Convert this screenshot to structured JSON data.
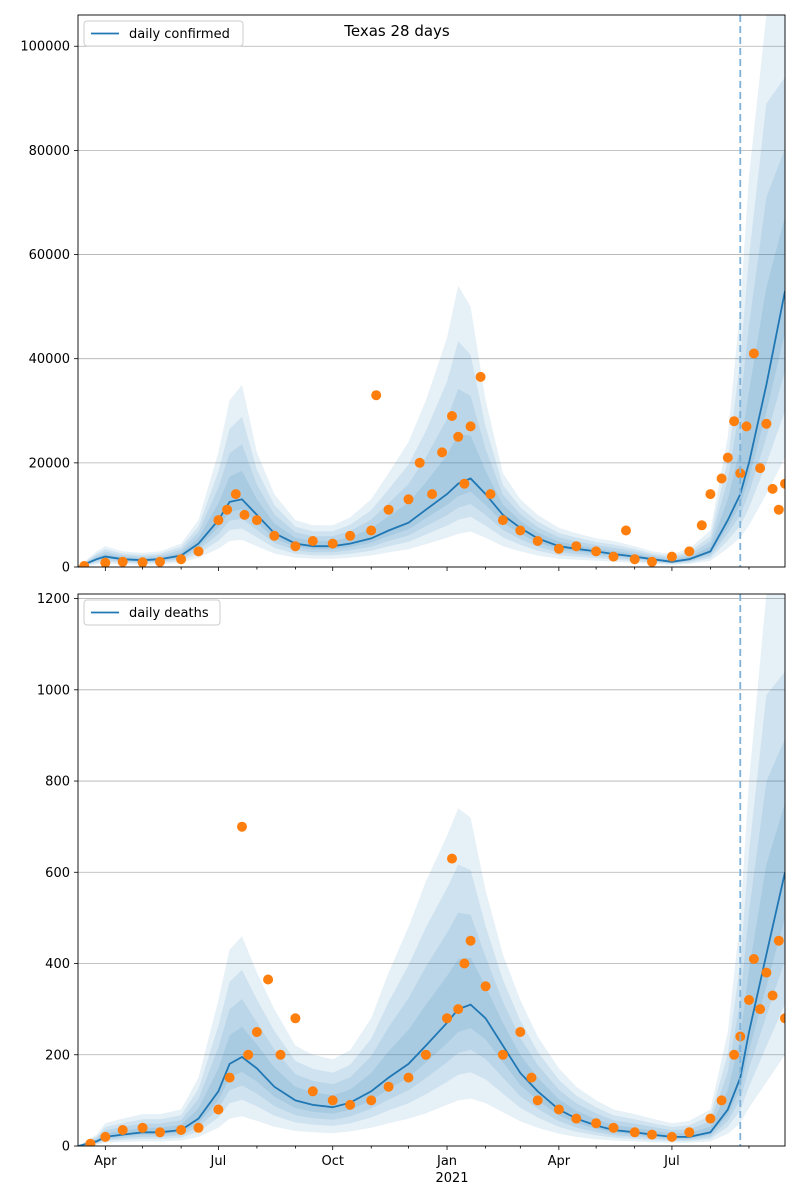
{
  "chart_data": [
    {
      "type": "line",
      "title": "Texas 28 days",
      "legend": {
        "location": "top-left",
        "entries": [
          "daily confirmed"
        ]
      },
      "grid": "horizontal",
      "ylim": [
        0,
        106000
      ],
      "yticks": [
        0,
        20000,
        40000,
        60000,
        80000,
        100000
      ],
      "xlim": [
        "2020-03-10",
        "2021-09-30"
      ],
      "projection_line_date": "2021-08-25",
      "colors": {
        "line": "#1f77b4",
        "points": "#ff7f0e",
        "band": "#1f77b4",
        "projection_line": "#7fb2d9"
      },
      "series": [
        {
          "name": "daily confirmed",
          "kind": "model line with uncertainty bands",
          "x": [
            "2020-03-10",
            "2020-03-25",
            "2020-04-01",
            "2020-04-15",
            "2020-05-01",
            "2020-05-15",
            "2020-06-01",
            "2020-06-15",
            "2020-07-01",
            "2020-07-10",
            "2020-07-20",
            "2020-08-01",
            "2020-08-15",
            "2020-09-01",
            "2020-09-15",
            "2020-10-01",
            "2020-10-15",
            "2020-11-01",
            "2020-11-15",
            "2020-12-01",
            "2020-12-15",
            "2021-01-01",
            "2021-01-10",
            "2021-01-20",
            "2021-02-01",
            "2021-02-15",
            "2021-03-01",
            "2021-03-15",
            "2021-04-01",
            "2021-04-15",
            "2021-05-01",
            "2021-05-15",
            "2021-06-01",
            "2021-06-15",
            "2021-07-01",
            "2021-07-15",
            "2021-08-01",
            "2021-08-15",
            "2021-08-25",
            "2021-09-01",
            "2021-09-15",
            "2021-09-30"
          ],
          "values": [
            0,
            1500,
            2000,
            1500,
            1300,
            1500,
            2200,
            4500,
            9000,
            12500,
            13000,
            10000,
            6500,
            4500,
            4000,
            4000,
            4500,
            5500,
            7000,
            8500,
            11000,
            14000,
            16000,
            17000,
            14000,
            10000,
            7500,
            5500,
            4000,
            3500,
            3000,
            2500,
            2000,
            1500,
            1000,
            1500,
            3000,
            9000,
            14000,
            20000,
            35000,
            53000
          ],
          "band_outer_upper": [
            0,
            3000,
            4000,
            3000,
            2700,
            3000,
            4500,
            9000,
            22000,
            32000,
            35000,
            22000,
            14000,
            9000,
            8000,
            8000,
            9500,
            13000,
            18000,
            24000,
            32000,
            44000,
            54000,
            50000,
            32000,
            18000,
            13000,
            10000,
            7500,
            6500,
            5500,
            5000,
            4000,
            3000,
            2500,
            3500,
            7000,
            25000,
            50000,
            75000,
            110000,
            110000
          ],
          "band_outer_lower": [
            0,
            500,
            700,
            500,
            450,
            500,
            800,
            1800,
            3500,
            5000,
            5200,
            4000,
            2600,
            1800,
            1600,
            1600,
            1800,
            2200,
            2800,
            3400,
            4400,
            5600,
            6400,
            6800,
            5600,
            4000,
            3000,
            2200,
            1600,
            1400,
            1200,
            1000,
            800,
            600,
            400,
            600,
            1200,
            3600,
            5600,
            8000,
            14000,
            21000
          ]
        },
        {
          "name": "observed",
          "kind": "scatter",
          "x": [
            "2020-03-15",
            "2020-04-01",
            "2020-04-15",
            "2020-05-01",
            "2020-05-15",
            "2020-06-01",
            "2020-06-15",
            "2020-07-01",
            "2020-07-08",
            "2020-07-15",
            "2020-07-22",
            "2020-08-01",
            "2020-08-15",
            "2020-09-01",
            "2020-09-15",
            "2020-10-01",
            "2020-10-15",
            "2020-11-01",
            "2020-11-05",
            "2020-11-15",
            "2020-12-01",
            "2020-12-10",
            "2020-12-20",
            "2020-12-28",
            "2021-01-05",
            "2021-01-10",
            "2021-01-15",
            "2021-01-20",
            "2021-01-28",
            "2021-02-05",
            "2021-02-15",
            "2021-03-01",
            "2021-03-15",
            "2021-04-01",
            "2021-04-15",
            "2021-05-01",
            "2021-05-15",
            "2021-05-25",
            "2021-06-01",
            "2021-06-15",
            "2021-07-01",
            "2021-07-15",
            "2021-07-25",
            "2021-08-01",
            "2021-08-10",
            "2021-08-15",
            "2021-08-20",
            "2021-08-25",
            "2021-08-30",
            "2021-09-05",
            "2021-09-10",
            "2021-09-15",
            "2021-09-20",
            "2021-09-25",
            "2021-09-30"
          ],
          "values": [
            200,
            800,
            1000,
            900,
            1000,
            1500,
            3000,
            9000,
            11000,
            14000,
            10000,
            9000,
            6000,
            4000,
            5000,
            4500,
            6000,
            7000,
            33000,
            11000,
            13000,
            20000,
            14000,
            22000,
            29000,
            25000,
            16000,
            27000,
            36500,
            14000,
            9000,
            7000,
            5000,
            3500,
            4000,
            3000,
            2000,
            7000,
            1500,
            1000,
            2000,
            3000,
            8000,
            14000,
            17000,
            21000,
            28000,
            18000,
            27000,
            41000,
            19000,
            27500,
            15000,
            11000,
            16000
          ]
        }
      ]
    },
    {
      "type": "line",
      "title": "",
      "legend": {
        "location": "top-left",
        "entries": [
          "daily deaths"
        ]
      },
      "grid": "horizontal",
      "ylim": [
        0,
        1210
      ],
      "yticks": [
        0,
        200,
        400,
        600,
        800,
        1000,
        1200
      ],
      "xlim": [
        "2020-03-10",
        "2021-09-30"
      ],
      "xtick_labels": [
        "Apr",
        "Jul",
        "Oct",
        "Jan",
        "Apr",
        "Jul"
      ],
      "xtick_year_label": "2021",
      "projection_line_date": "2021-08-25",
      "colors": {
        "line": "#1f77b4",
        "points": "#ff7f0e",
        "band": "#1f77b4",
        "projection_line": "#7fb2d9"
      },
      "series": [
        {
          "name": "daily deaths",
          "kind": "model line with uncertainty bands",
          "x": [
            "2020-03-10",
            "2020-03-25",
            "2020-04-01",
            "2020-04-15",
            "2020-05-01",
            "2020-05-15",
            "2020-06-01",
            "2020-06-15",
            "2020-07-01",
            "2020-07-10",
            "2020-07-20",
            "2020-08-01",
            "2020-08-15",
            "2020-09-01",
            "2020-09-15",
            "2020-10-01",
            "2020-10-15",
            "2020-11-01",
            "2020-11-15",
            "2020-12-01",
            "2020-12-15",
            "2021-01-01",
            "2021-01-10",
            "2021-01-20",
            "2021-02-01",
            "2021-02-15",
            "2021-03-01",
            "2021-03-15",
            "2021-04-01",
            "2021-04-15",
            "2021-05-01",
            "2021-05-15",
            "2021-06-01",
            "2021-06-15",
            "2021-07-01",
            "2021-07-15",
            "2021-08-01",
            "2021-08-15",
            "2021-08-25",
            "2021-09-01",
            "2021-09-15",
            "2021-09-30"
          ],
          "values": [
            0,
            10,
            20,
            25,
            30,
            30,
            35,
            60,
            120,
            180,
            195,
            170,
            130,
            100,
            90,
            85,
            95,
            120,
            150,
            180,
            220,
            270,
            300,
            310,
            280,
            220,
            160,
            120,
            80,
            60,
            45,
            35,
            30,
            25,
            20,
            20,
            30,
            80,
            150,
            250,
            420,
            600
          ],
          "band_outer_upper": [
            0,
            25,
            50,
            60,
            70,
            70,
            80,
            150,
            320,
            430,
            460,
            380,
            300,
            220,
            200,
            190,
            210,
            280,
            380,
            480,
            580,
            680,
            740,
            720,
            560,
            420,
            320,
            240,
            170,
            130,
            100,
            80,
            70,
            60,
            50,
            55,
            80,
            250,
            500,
            800,
            1210,
            1210
          ],
          "band_outer_lower": [
            0,
            3,
            7,
            9,
            10,
            10,
            12,
            20,
            40,
            60,
            65,
            55,
            42,
            33,
            30,
            28,
            32,
            40,
            50,
            60,
            72,
            90,
            100,
            104,
            94,
            74,
            54,
            40,
            27,
            20,
            15,
            12,
            10,
            8,
            7,
            7,
            10,
            27,
            50,
            84,
            140,
            200
          ]
        },
        {
          "name": "observed",
          "kind": "scatter",
          "x": [
            "2020-03-20",
            "2020-04-01",
            "2020-04-15",
            "2020-05-01",
            "2020-05-15",
            "2020-06-01",
            "2020-06-15",
            "2020-07-01",
            "2020-07-10",
            "2020-07-20",
            "2020-07-25",
            "2020-08-01",
            "2020-08-10",
            "2020-08-20",
            "2020-09-01",
            "2020-09-15",
            "2020-10-01",
            "2020-10-15",
            "2020-11-01",
            "2020-11-15",
            "2020-12-01",
            "2020-12-15",
            "2021-01-01",
            "2021-01-05",
            "2021-01-10",
            "2021-01-15",
            "2021-01-20",
            "2021-02-01",
            "2021-02-15",
            "2021-03-01",
            "2021-03-10",
            "2021-03-15",
            "2021-04-01",
            "2021-04-15",
            "2021-05-01",
            "2021-05-15",
            "2021-06-01",
            "2021-06-15",
            "2021-07-01",
            "2021-07-15",
            "2021-08-01",
            "2021-08-10",
            "2021-08-20",
            "2021-08-25",
            "2021-09-01",
            "2021-09-05",
            "2021-09-10",
            "2021-09-15",
            "2021-09-20",
            "2021-09-25",
            "2021-09-30"
          ],
          "values": [
            5,
            20,
            35,
            40,
            30,
            35,
            40,
            80,
            150,
            700,
            200,
            250,
            365,
            200,
            280,
            120,
            100,
            90,
            100,
            130,
            150,
            200,
            280,
            630,
            300,
            400,
            450,
            350,
            200,
            250,
            150,
            100,
            80,
            60,
            50,
            40,
            30,
            25,
            20,
            30,
            60,
            100,
            200,
            240,
            320,
            410,
            300,
            380,
            330,
            450,
            280
          ]
        }
      ]
    }
  ]
}
